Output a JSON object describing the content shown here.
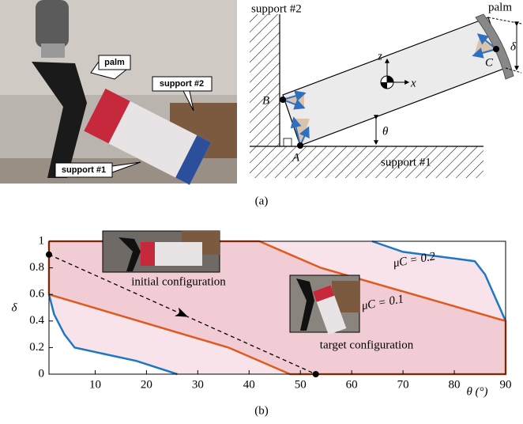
{
  "panel_a": {
    "photo_labels": [
      "palm",
      "support #2",
      "support #1"
    ],
    "diagram_labels": {
      "support2": "support #2",
      "palm": "palm",
      "B": "B",
      "A": "A",
      "C": "C",
      "z": "z",
      "x": "x",
      "theta": "θ",
      "delta": "δ",
      "support1": "support #1"
    },
    "caption": "(a)"
  },
  "panel_b_caption": "(b)",
  "chart_data": {
    "type": "line",
    "xlabel": "θ (°)",
    "ylabel": "δ",
    "xlim": [
      1,
      90
    ],
    "ylim": [
      0,
      1
    ],
    "xticks": [
      10,
      20,
      30,
      40,
      50,
      60,
      70,
      80,
      90
    ],
    "yticks": [
      0,
      0.2,
      0.4,
      0.6,
      0.8,
      1
    ],
    "series": [
      {
        "name": "μC = 0.2",
        "color": "#1f77c4",
        "fill_color": "#f7e3e9",
        "x": [
          1,
          2,
          4,
          6,
          18,
          26,
          null,
          64,
          70,
          80,
          84,
          86,
          90
        ],
        "values": [
          0.6,
          0.45,
          0.3,
          0.2,
          0.1,
          0,
          null,
          1,
          0.92,
          0.87,
          0.85,
          0.75,
          0.4
        ]
      },
      {
        "name": "μC = 0.1",
        "color": "#e0591f",
        "fill_color": "#f1ccd5",
        "x": [
          1,
          42,
          48,
          54,
          90,
          90,
          48,
          36,
          1,
          1
        ],
        "values": [
          1,
          1,
          0.9,
          0.8,
          0.4,
          0,
          0,
          0.2,
          0.6,
          1
        ]
      },
      {
        "color": "#000000",
        "dashed": true,
        "x": [
          1,
          53
        ],
        "values": [
          0.9,
          0
        ]
      }
    ],
    "annotations": [
      "initial configuration",
      "target configuration"
    ]
  }
}
